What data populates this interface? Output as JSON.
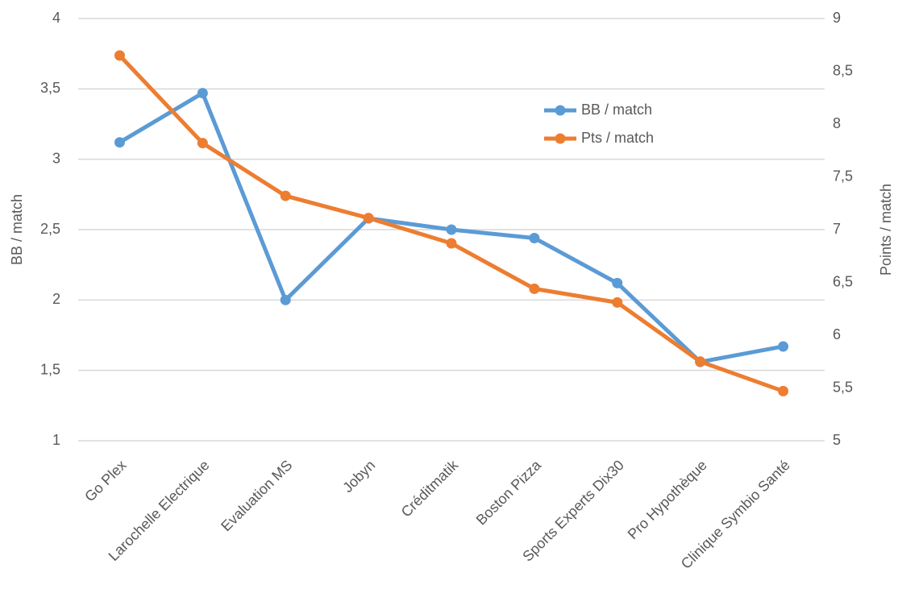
{
  "chart_data": {
    "type": "line",
    "categories": [
      "Go Plex",
      "Larochelle Electrique",
      "Evaluation MS",
      "Jobyn",
      "Créditmatik",
      "Boston Pizza",
      "Sports Experts Dix30",
      "Pro Hypothèque",
      "Clinique Symbio Santé"
    ],
    "series": [
      {
        "name": "BB / match",
        "color": "#5b9bd5",
        "values": [
          3.12,
          3.47,
          2.0,
          2.58,
          2.5,
          2.44,
          2.12,
          1.56,
          1.67
        ]
      },
      {
        "name": "Pts / match",
        "color": "#ed7d31",
        "axis": "y2",
        "values": [
          8.65,
          7.82,
          7.32,
          7.11,
          6.87,
          6.44,
          6.31,
          5.75,
          5.47
        ]
      }
    ],
    "y_label": "BB / match",
    "y2_label": "Points / match",
    "ylim": [
      1,
      4
    ],
    "yticks": [
      1,
      {
        "value": 1.5,
        "label": "1,5"
      },
      2,
      {
        "value": 2.5,
        "label": "2,5"
      },
      3,
      {
        "value": 3.5,
        "label": "3,5"
      },
      4
    ],
    "y2lim": [
      5,
      9
    ],
    "y2ticks": [
      5,
      {
        "value": 5.5,
        "label": "5,5"
      },
      6,
      {
        "value": 6.5,
        "label": "6,5"
      },
      7,
      {
        "value": 7.5,
        "label": "7,5"
      },
      8,
      {
        "value": 8.5,
        "label": "8,5"
      },
      9
    ],
    "grid": true,
    "legend": "upper right"
  }
}
